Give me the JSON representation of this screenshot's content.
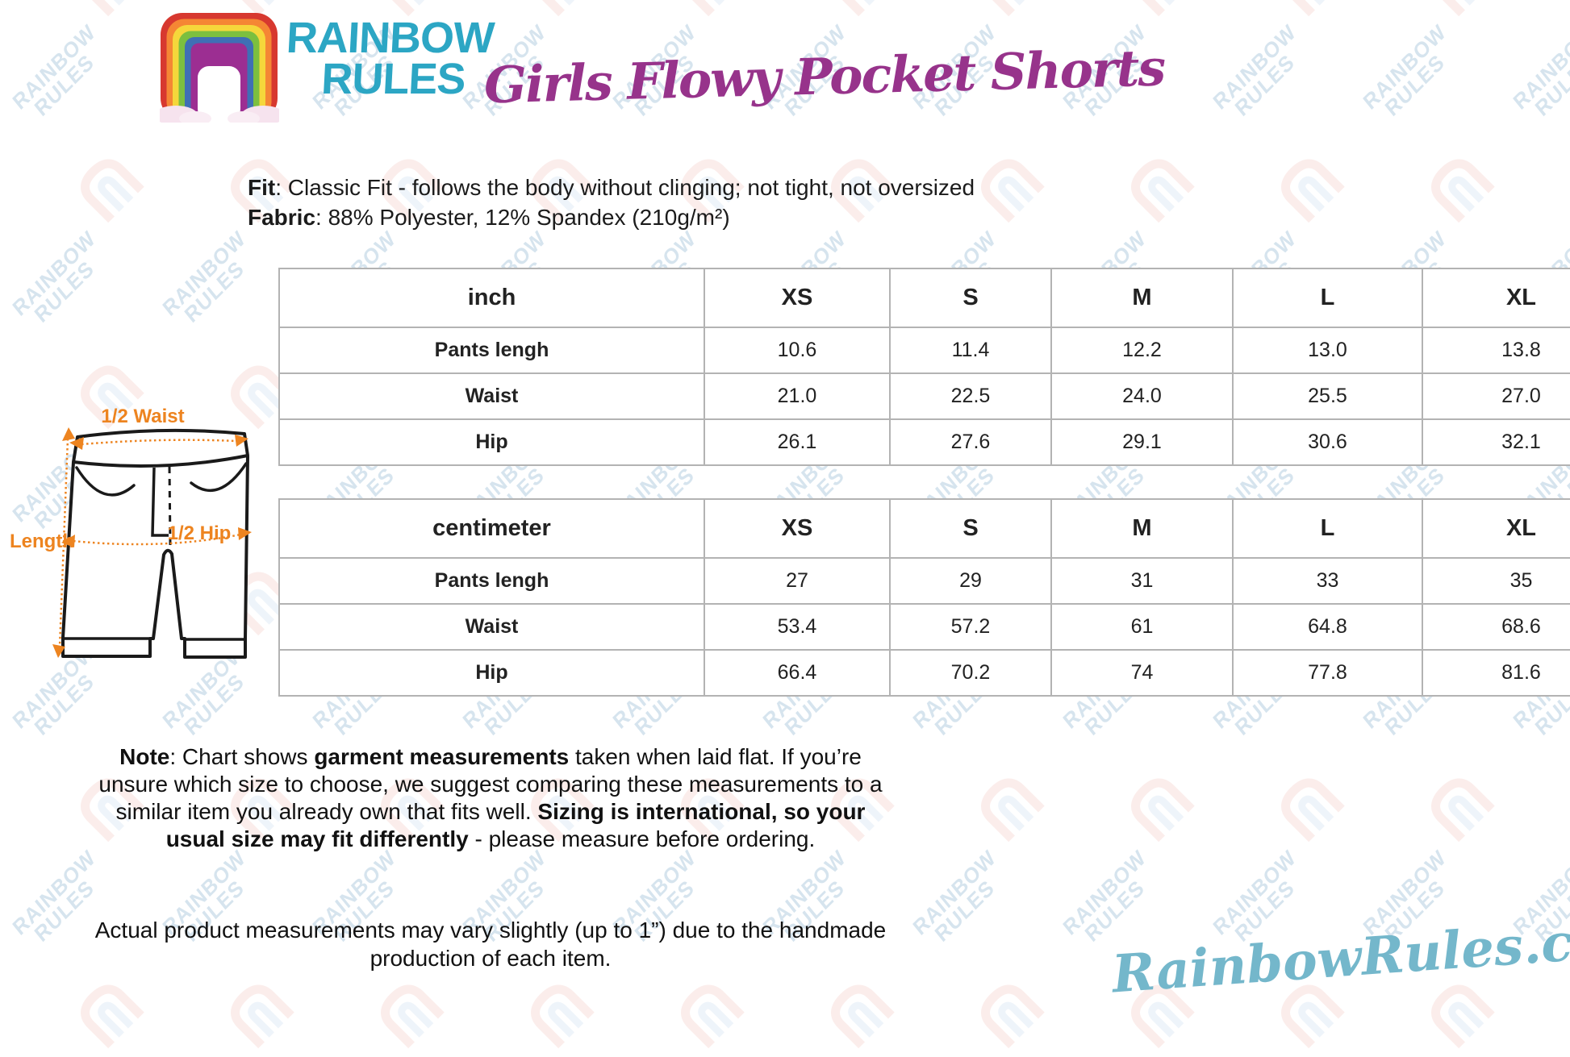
{
  "brand": {
    "logo_line1": "RAINBOW",
    "logo_line2": "RULES",
    "watermark_line1": "RAINBOW",
    "watermark_line2": "RULES",
    "website": "RainbowRules.com"
  },
  "header": {
    "title": "Girls Flowy Pocket Shorts"
  },
  "product_info": {
    "fit_label": "Fit",
    "fit_text": ": Classic Fit - follows the body without clinging; not tight, not oversized",
    "fabric_label": "Fabric",
    "fabric_text": ": 88% Polyester, 12% Spandex (210g/m²)"
  },
  "size_tables": [
    {
      "unit": "inch",
      "sizes": [
        "XS",
        "S",
        "M",
        "L",
        "XL"
      ],
      "rows": [
        {
          "label": "Pants lengh",
          "values": [
            "10.6",
            "11.4",
            "12.2",
            "13.0",
            "13.8"
          ]
        },
        {
          "label": "Waist",
          "values": [
            "21.0",
            "22.5",
            "24.0",
            "25.5",
            "27.0"
          ]
        },
        {
          "label": "Hip",
          "values": [
            "26.1",
            "27.6",
            "29.1",
            "30.6",
            "32.1"
          ]
        }
      ]
    },
    {
      "unit": "centimeter",
      "sizes": [
        "XS",
        "S",
        "M",
        "L",
        "XL"
      ],
      "rows": [
        {
          "label": "Pants lengh",
          "values": [
            "27",
            "29",
            "31",
            "33",
            "35"
          ]
        },
        {
          "label": "Waist",
          "values": [
            "53.4",
            "57.2",
            "61",
            "64.8",
            "68.6"
          ]
        },
        {
          "label": "Hip",
          "values": [
            "66.4",
            "70.2",
            "74",
            "77.8",
            "81.6"
          ]
        }
      ]
    }
  ],
  "diagram": {
    "labels": {
      "half_waist": "1/2 Waist",
      "length": "Length",
      "half_hip": "1/2 Hip"
    }
  },
  "notes": {
    "note_segments": [
      {
        "text": "Note",
        "bold": true
      },
      {
        "text": ": Chart shows ",
        "bold": false
      },
      {
        "text": "garment measurements",
        "bold": true
      },
      {
        "text": " taken when laid flat. If you’re unsure which size to choose, we suggest comparing these measurements to a similar item you already own that fits well. ",
        "bold": false
      },
      {
        "text": "Sizing is international, so your usual size may fit differently",
        "bold": true
      },
      {
        "text": " - please measure before ordering.",
        "bold": false
      }
    ],
    "disclaimer": "Actual product measurements may vary slightly (up to 1”) due to the handmade production of each item."
  },
  "colors": {
    "title_purple": "#97338B",
    "brand_teal": "#2CA6C4",
    "accent_orange": "#ED8420",
    "website_blue": "#74B7CB"
  }
}
